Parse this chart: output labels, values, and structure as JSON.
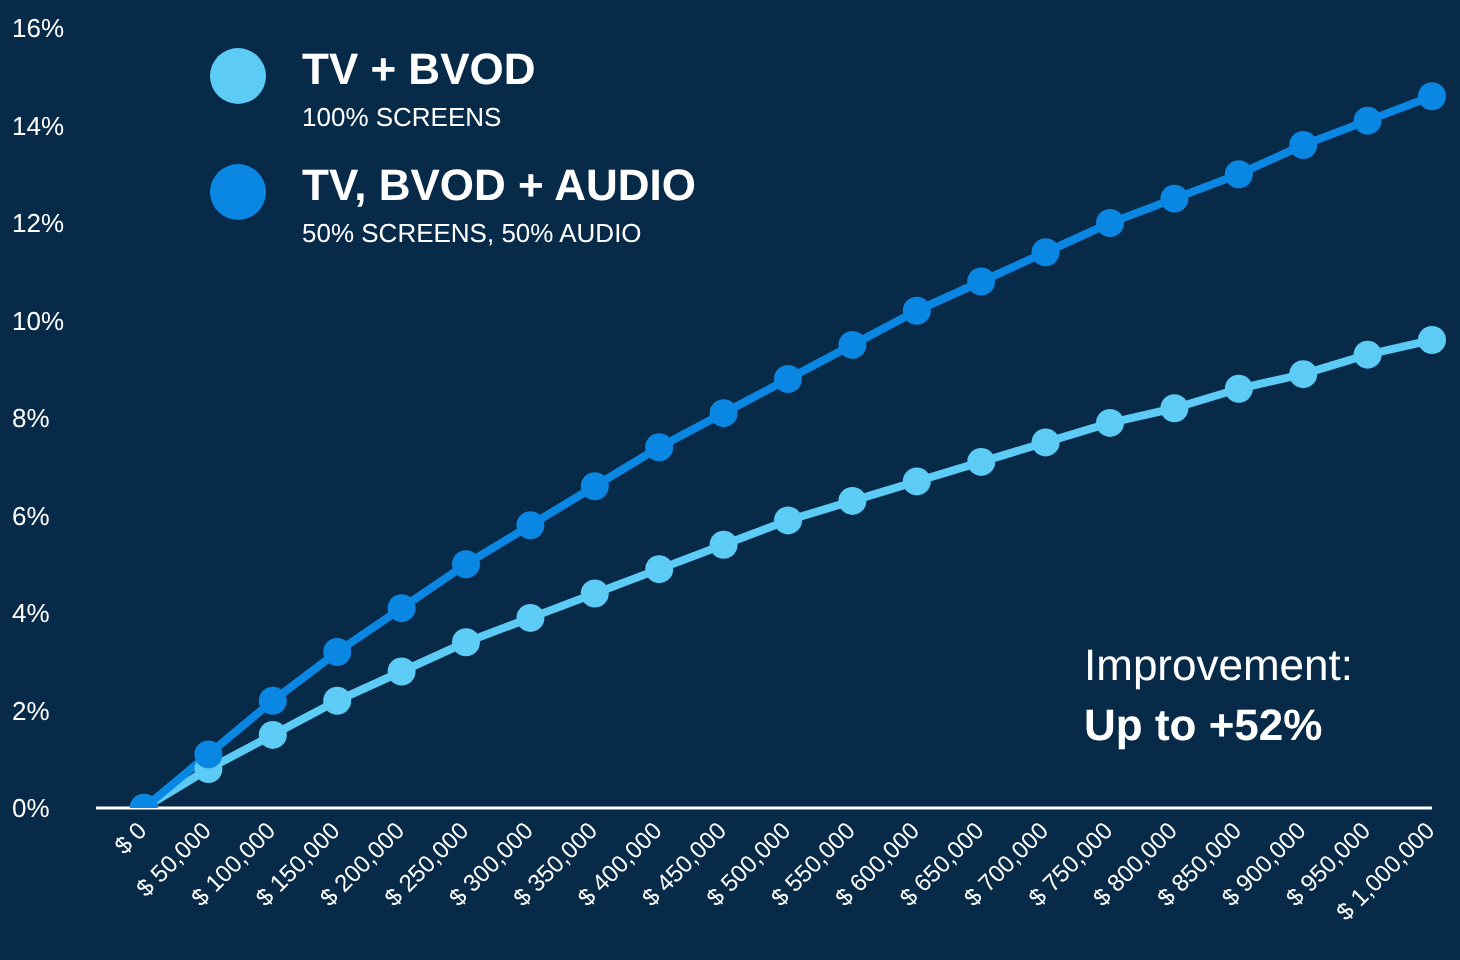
{
  "chart_data": {
    "type": "line",
    "categories": [
      "$ 0",
      "$ 50,000",
      "$ 100,000",
      "$ 150,000",
      "$ 200,000",
      "$ 250,000",
      "$ 300,000",
      "$ 350,000",
      "$ 400,000",
      "$ 450,000",
      "$ 500,000",
      "$ 550,000",
      "$ 600,000",
      "$ 650,000",
      "$ 700,000",
      "$ 750,000",
      "$ 800,000",
      "$ 850,000",
      "$ 900,000",
      "$ 950,000",
      "$ 1,000,000"
    ],
    "series": [
      {
        "name": "TV + BVOD",
        "color": "#5ccbf5",
        "values": [
          0,
          0.8,
          1.5,
          2.2,
          2.8,
          3.4,
          3.9,
          4.4,
          4.9,
          5.4,
          5.9,
          6.3,
          6.7,
          7.1,
          7.5,
          7.9,
          8.2,
          8.6,
          8.9,
          9.3,
          9.6
        ]
      },
      {
        "name": "TV, BVOD + AUDIO",
        "color": "#0a86e3",
        "values": [
          0,
          1.1,
          2.2,
          3.2,
          4.1,
          5.0,
          5.8,
          6.6,
          7.4,
          8.1,
          8.8,
          9.5,
          10.2,
          10.8,
          11.4,
          12.0,
          12.5,
          13.0,
          13.6,
          14.1,
          14.6
        ]
      }
    ],
    "ylim": [
      0,
      16
    ],
    "yticks": [
      {
        "value": 0,
        "label": "0%"
      },
      {
        "value": 2,
        "label": "2%"
      },
      {
        "value": 4,
        "label": "4%"
      },
      {
        "value": 6,
        "label": "6%"
      },
      {
        "value": 8,
        "label": "8%"
      },
      {
        "value": 10,
        "label": "10%"
      },
      {
        "value": 12,
        "label": "12%"
      },
      {
        "value": 14,
        "label": "14%"
      },
      {
        "value": 16,
        "label": "16%"
      }
    ],
    "annotations": [
      "100% SCREENS",
      "50% SCREENS, 50% AUDIO",
      "Improvement:",
      "Up to +52%"
    ],
    "grid": false,
    "legend": "top left",
    "marker": "circle",
    "line_style": "solid"
  }
}
